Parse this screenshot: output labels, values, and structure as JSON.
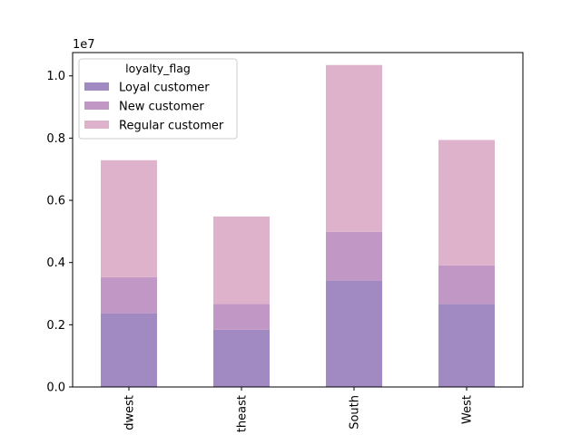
{
  "chart_data": {
    "type": "bar",
    "stacked": true,
    "categories": [
      "Midwest",
      "Northeast",
      "South",
      "West"
    ],
    "tick_labels_visible": [
      "dwest",
      "theast",
      "South",
      "West"
    ],
    "y_multiplier": "1e7",
    "ylim": [
      0,
      1.075
    ],
    "yticks": [
      0.0,
      0.2,
      0.4,
      0.6,
      0.8,
      1.0
    ],
    "ytick_labels": [
      "0.0",
      "0.2",
      "0.4",
      "0.6",
      "0.8",
      "1.0"
    ],
    "xlabel": "",
    "ylabel": "",
    "grid": false,
    "legend": {
      "title": "loyalty_flag",
      "placement": "top-left"
    },
    "series": [
      {
        "name": "Loyal customer",
        "color": "#a189c2",
        "values": [
          0.237,
          0.184,
          0.342,
          0.267
        ]
      },
      {
        "name": "New customer",
        "color": "#c197c6",
        "values": [
          0.116,
          0.083,
          0.157,
          0.124
        ]
      },
      {
        "name": "Regular customer",
        "color": "#dfb2cb",
        "values": [
          0.376,
          0.281,
          0.536,
          0.403
        ]
      }
    ]
  }
}
